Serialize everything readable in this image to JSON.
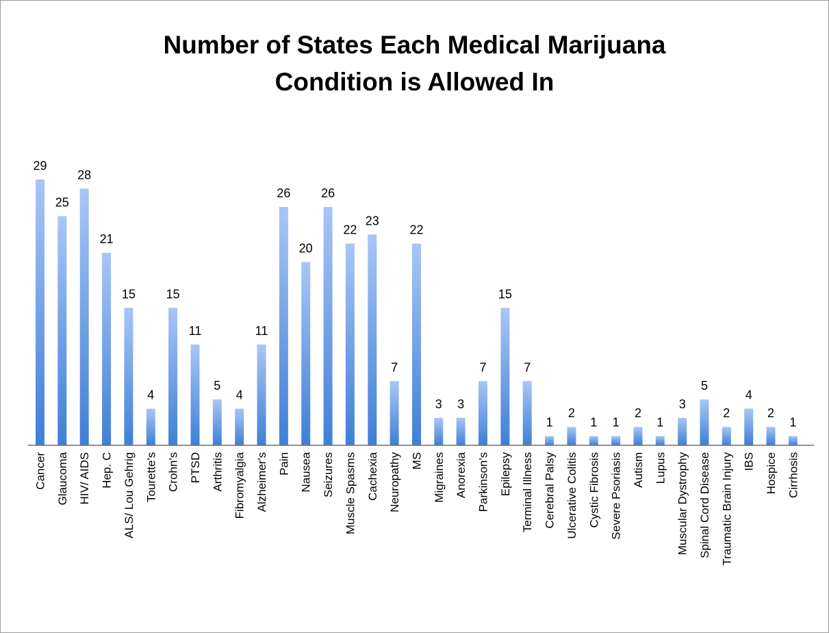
{
  "chart_data": {
    "type": "bar",
    "title_lines": [
      "Number of States Each Medical Marijuana",
      "Condition is Allowed In"
    ],
    "xlabel": "",
    "ylabel": "",
    "ylim": [
      0,
      30
    ],
    "grid": false,
    "legend": "none",
    "bar_color_top": "#a9c6f5",
    "bar_color_bottom": "#3f7fd6",
    "categories": [
      "Cancer",
      "Glaucoma",
      "HIV/ AIDS",
      "Hep. C",
      "ALS/ Lou Gehrig",
      "Tourette's",
      "Crohn's",
      "PTSD",
      "Arthritis",
      "Fibromyalgia",
      "Alzheimer's",
      "Pain",
      "Nausea",
      "Seizures",
      "Muscle Spasms",
      "Cachexia",
      "Neuropathy",
      "MS",
      "Migraines",
      "Anorexia",
      "Parkinson's",
      "Epilepsy",
      "Terminal Illness",
      "Cerebral Palsy",
      "Ulcerative Colitis",
      "Cystic Fibrosis",
      "Severe Psoriasis",
      "Autism",
      "Lupus",
      "Muscular Dystrophy",
      "Spinal Cord Disease",
      "Traumatic Brain Injury",
      "IBS",
      "Hospice",
      "Cirrhosis"
    ],
    "values": [
      29,
      25,
      28,
      21,
      15,
      4,
      15,
      11,
      5,
      4,
      11,
      26,
      20,
      26,
      22,
      23,
      7,
      22,
      3,
      3,
      7,
      15,
      7,
      1,
      2,
      1,
      1,
      2,
      1,
      3,
      5,
      2,
      4,
      2,
      1
    ]
  }
}
